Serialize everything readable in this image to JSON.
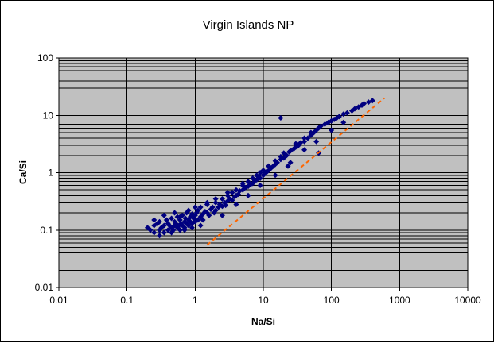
{
  "chart_data": {
    "type": "scatter",
    "title": "Virgin Islands NP",
    "xlabel": "Na/Si",
    "ylabel": "Ca/Si",
    "xscale": "log",
    "yscale": "log",
    "xlim": [
      0.01,
      10000
    ],
    "ylim": [
      0.01,
      100
    ],
    "x_ticks": [
      "0.01",
      "0.1",
      "1",
      "10",
      "100",
      "1000",
      "10000"
    ],
    "y_ticks": [
      "0.01",
      "0.1",
      "1",
      "10",
      "100"
    ],
    "grid": "major and minor horizontal gridlines, major vertical gridlines",
    "legend": "none",
    "plot_background": "#c0c0c0",
    "marker_color": "#000080",
    "marker_shape": "diamond",
    "trendline_color": "#ff6600",
    "trendline_style": "dashed",
    "trendline": {
      "x": [
        1.5,
        600
      ],
      "y": [
        0.055,
        20
      ]
    },
    "series": [
      {
        "x": [
          0.2,
          0.22,
          0.25,
          0.25,
          0.28,
          0.3,
          0.3,
          0.32,
          0.35,
          0.35,
          0.38,
          0.4,
          0.4,
          0.42,
          0.45,
          0.45,
          0.48,
          0.5,
          0.5,
          0.52,
          0.55,
          0.55,
          0.58,
          0.6,
          0.6,
          0.62,
          0.65,
          0.65,
          0.7,
          0.7,
          0.72,
          0.75,
          0.75,
          0.8,
          0.8,
          0.85,
          0.85,
          0.9,
          0.9,
          0.95,
          1.0,
          1.0,
          1.05,
          1.1,
          1.1,
          1.2,
          1.2,
          1.3,
          1.3,
          1.4,
          1.5,
          1.5,
          1.6,
          1.7,
          1.8,
          1.9,
          2.0,
          2.0,
          2.2,
          2.3,
          2.5,
          2.5,
          2.7,
          2.8,
          3.0,
          3.0,
          3.2,
          3.5,
          3.5,
          3.8,
          4.0,
          4.0,
          4.3,
          4.5,
          5.0,
          5.0,
          5.5,
          6.0,
          6.0,
          6.5,
          7.0,
          7.0,
          7.5,
          8.0,
          8.5,
          9.0,
          9.0,
          10.0,
          10.0,
          11.0,
          12.0,
          12.0,
          13.0,
          14.0,
          15.0,
          15.0,
          16.0,
          18.0,
          18.0,
          20.0,
          20.0,
          22.0,
          24.0,
          25.0,
          28.0,
          30.0,
          30.0,
          33.0,
          35.0,
          40.0,
          40.0,
          45.0,
          50.0,
          50.0,
          55.0,
          60.0,
          65.0,
          70.0,
          80.0,
          90.0,
          100.0,
          110.0,
          120.0,
          130.0,
          150.0,
          170.0,
          200.0,
          220.0,
          250.0,
          280.0,
          300.0,
          350.0,
          400.0,
          18.0,
          23.0,
          65.0,
          0.25,
          0.35,
          0.5,
          0.6,
          0.8,
          1.0,
          1.5,
          2.0,
          3.0,
          5.0,
          8.0,
          12.0,
          0.3,
          0.45,
          0.7,
          0.9,
          1.2,
          2.5,
          4.0,
          6.0,
          9.0,
          15.0,
          25.0,
          40.0,
          60.0,
          100.0,
          150.0
        ],
        "y": [
          0.11,
          0.1,
          0.12,
          0.09,
          0.13,
          0.1,
          0.14,
          0.11,
          0.12,
          0.09,
          0.15,
          0.1,
          0.13,
          0.12,
          0.11,
          0.16,
          0.1,
          0.14,
          0.12,
          0.13,
          0.11,
          0.17,
          0.12,
          0.15,
          0.1,
          0.13,
          0.12,
          0.18,
          0.14,
          0.11,
          0.16,
          0.13,
          0.2,
          0.15,
          0.12,
          0.17,
          0.14,
          0.19,
          0.13,
          0.16,
          0.18,
          0.14,
          0.2,
          0.15,
          0.22,
          0.17,
          0.25,
          0.19,
          0.15,
          0.21,
          0.2,
          0.28,
          0.18,
          0.23,
          0.25,
          0.2,
          0.22,
          0.3,
          0.25,
          0.28,
          0.26,
          0.35,
          0.3,
          0.27,
          0.32,
          0.4,
          0.35,
          0.33,
          0.45,
          0.38,
          0.4,
          0.5,
          0.42,
          0.48,
          0.5,
          0.6,
          0.55,
          0.58,
          0.7,
          0.62,
          0.65,
          0.8,
          0.72,
          0.75,
          0.85,
          0.8,
          1.0,
          0.9,
          1.1,
          1.0,
          1.1,
          1.3,
          1.2,
          1.3,
          1.4,
          1.6,
          1.5,
          1.7,
          1.9,
          1.8,
          2.2,
          2.0,
          2.3,
          2.4,
          2.6,
          2.8,
          3.2,
          3.0,
          3.3,
          3.5,
          4.0,
          4.0,
          4.5,
          5.0,
          5.0,
          5.5,
          6.0,
          6.5,
          7.0,
          7.5,
          8.0,
          8.5,
          9.0,
          9.5,
          10.5,
          11.0,
          12.0,
          13.0,
          14.0,
          15.0,
          16.0,
          17.0,
          18.0,
          9.0,
          1.3,
          2.2,
          0.15,
          0.18,
          0.2,
          0.17,
          0.22,
          0.25,
          0.3,
          0.35,
          0.45,
          0.65,
          0.9,
          1.3,
          0.08,
          0.09,
          0.1,
          0.11,
          0.12,
          0.18,
          0.28,
          0.4,
          0.6,
          0.9,
          1.5,
          2.5,
          3.5,
          5.5,
          7.5
        ]
      }
    ]
  }
}
